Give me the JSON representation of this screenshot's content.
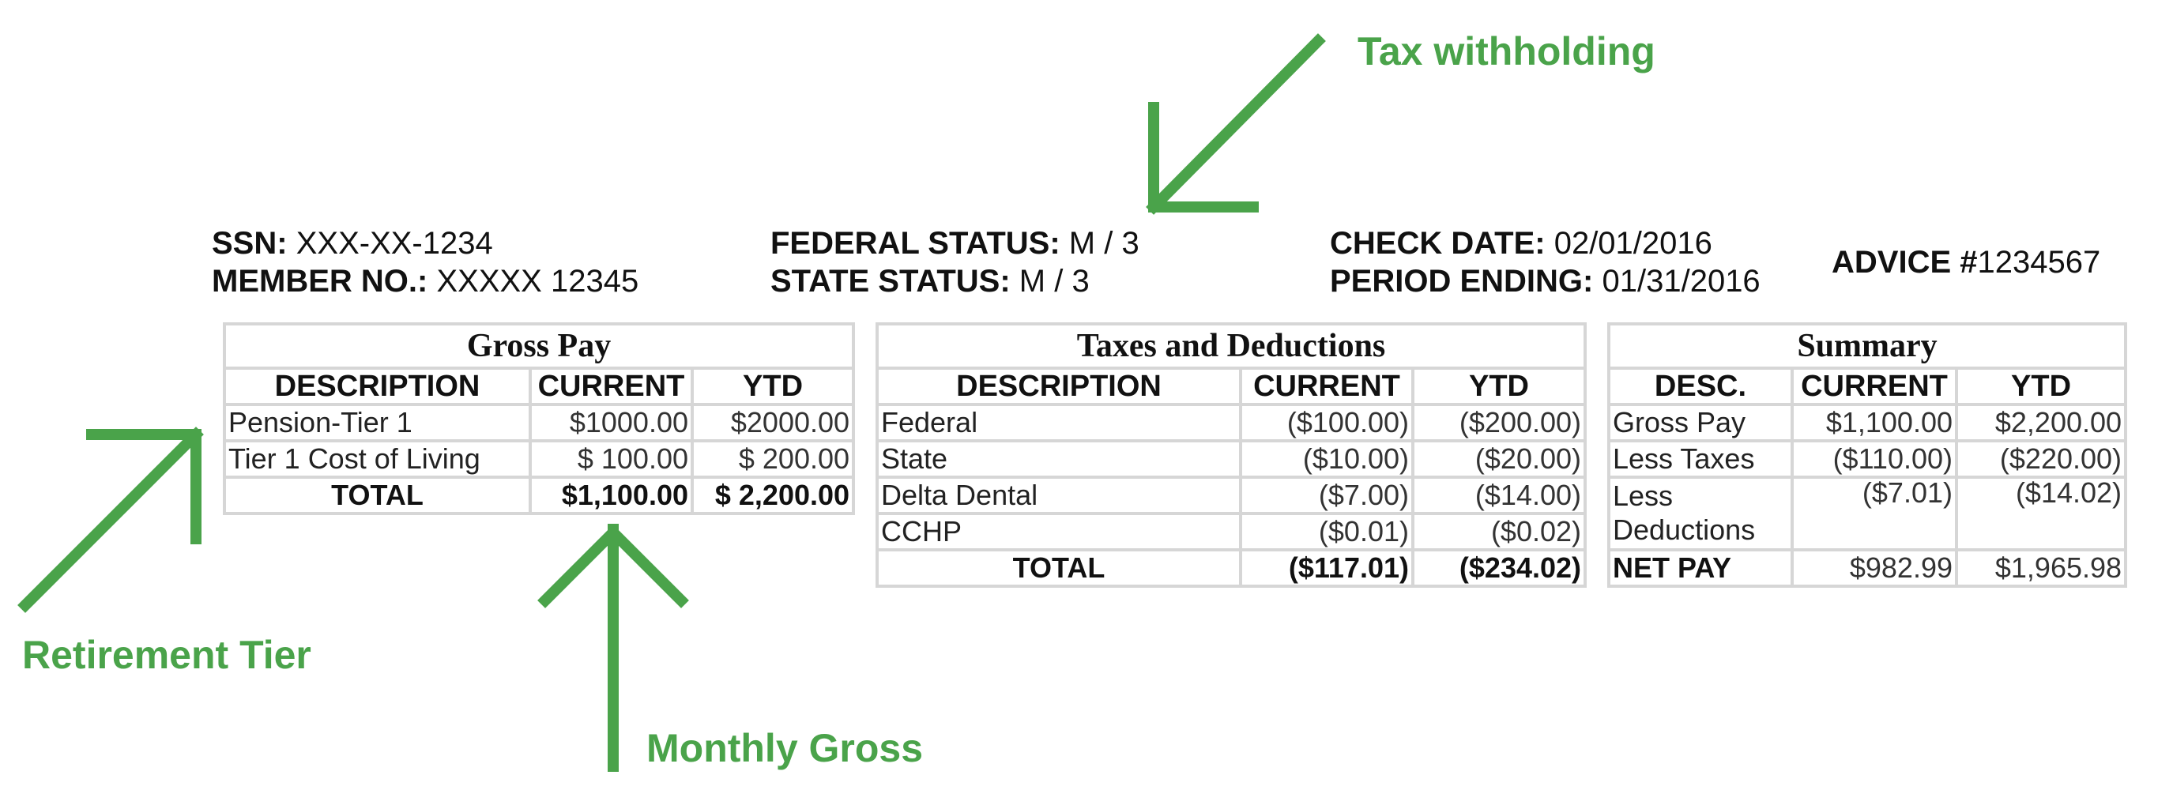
{
  "annotations": {
    "tax_withholding": "Tax withholding",
    "retirement_tier": "Retirement Tier",
    "monthly_gross": "Monthly Gross",
    "arrow_color": "#4aa34a"
  },
  "header": {
    "ssn_label": "SSN:",
    "ssn_value": "XXX-XX-1234",
    "member_label": "MEMBER NO.:",
    "member_value": "XXXXX 12345",
    "federal_label": "FEDERAL STATUS:",
    "federal_value": "M / 3",
    "state_label": "STATE STATUS:",
    "state_value": "M / 3",
    "check_date_label": "CHECK DATE:",
    "check_date_value": "02/01/2016",
    "period_label": "PERIOD ENDING:",
    "period_value": "01/31/2016",
    "advice_label": "ADVICE #",
    "advice_value": "1234567"
  },
  "gross_pay": {
    "title": "Gross Pay",
    "columns": [
      "DESCRIPTION",
      "CURRENT",
      "YTD"
    ],
    "rows": [
      {
        "desc": "Pension-Tier 1",
        "current": "$1000.00",
        "ytd": "$2000.00"
      },
      {
        "desc": "Tier 1 Cost of Living",
        "current": "$ 100.00",
        "ytd": "$ 200.00"
      }
    ],
    "total": {
      "desc": "TOTAL",
      "current": "$1,100.00",
      "ytd": "$ 2,200.00"
    }
  },
  "taxes": {
    "title": "Taxes and Deductions",
    "columns": [
      "DESCRIPTION",
      "CURRENT",
      "YTD"
    ],
    "rows": [
      {
        "desc": "Federal",
        "current": "($100.00)",
        "ytd": "($200.00)"
      },
      {
        "desc": "State",
        "current": "($10.00)",
        "ytd": "($20.00)"
      },
      {
        "desc": "Delta Dental",
        "current": "($7.00)",
        "ytd": "($14.00)"
      },
      {
        "desc": "CCHP",
        "current": "($0.01)",
        "ytd": "($0.02)"
      }
    ],
    "total": {
      "desc": "TOTAL",
      "current": "($117.01)",
      "ytd": "($234.02)"
    }
  },
  "summary": {
    "title": "Summary",
    "columns": [
      "DESC.",
      "CURRENT",
      "YTD"
    ],
    "rows": [
      {
        "desc": "Gross Pay",
        "current": "$1,100.00",
        "ytd": "$2,200.00"
      },
      {
        "desc": "Less  Taxes",
        "current": "($110.00)",
        "ytd": "($220.00)"
      },
      {
        "desc": "Less Deductions",
        "current": "($7.01)",
        "ytd": "($14.02)"
      }
    ],
    "net": {
      "desc": "NET PAY",
      "current": "$982.99",
      "ytd": "$1,965.98"
    }
  }
}
